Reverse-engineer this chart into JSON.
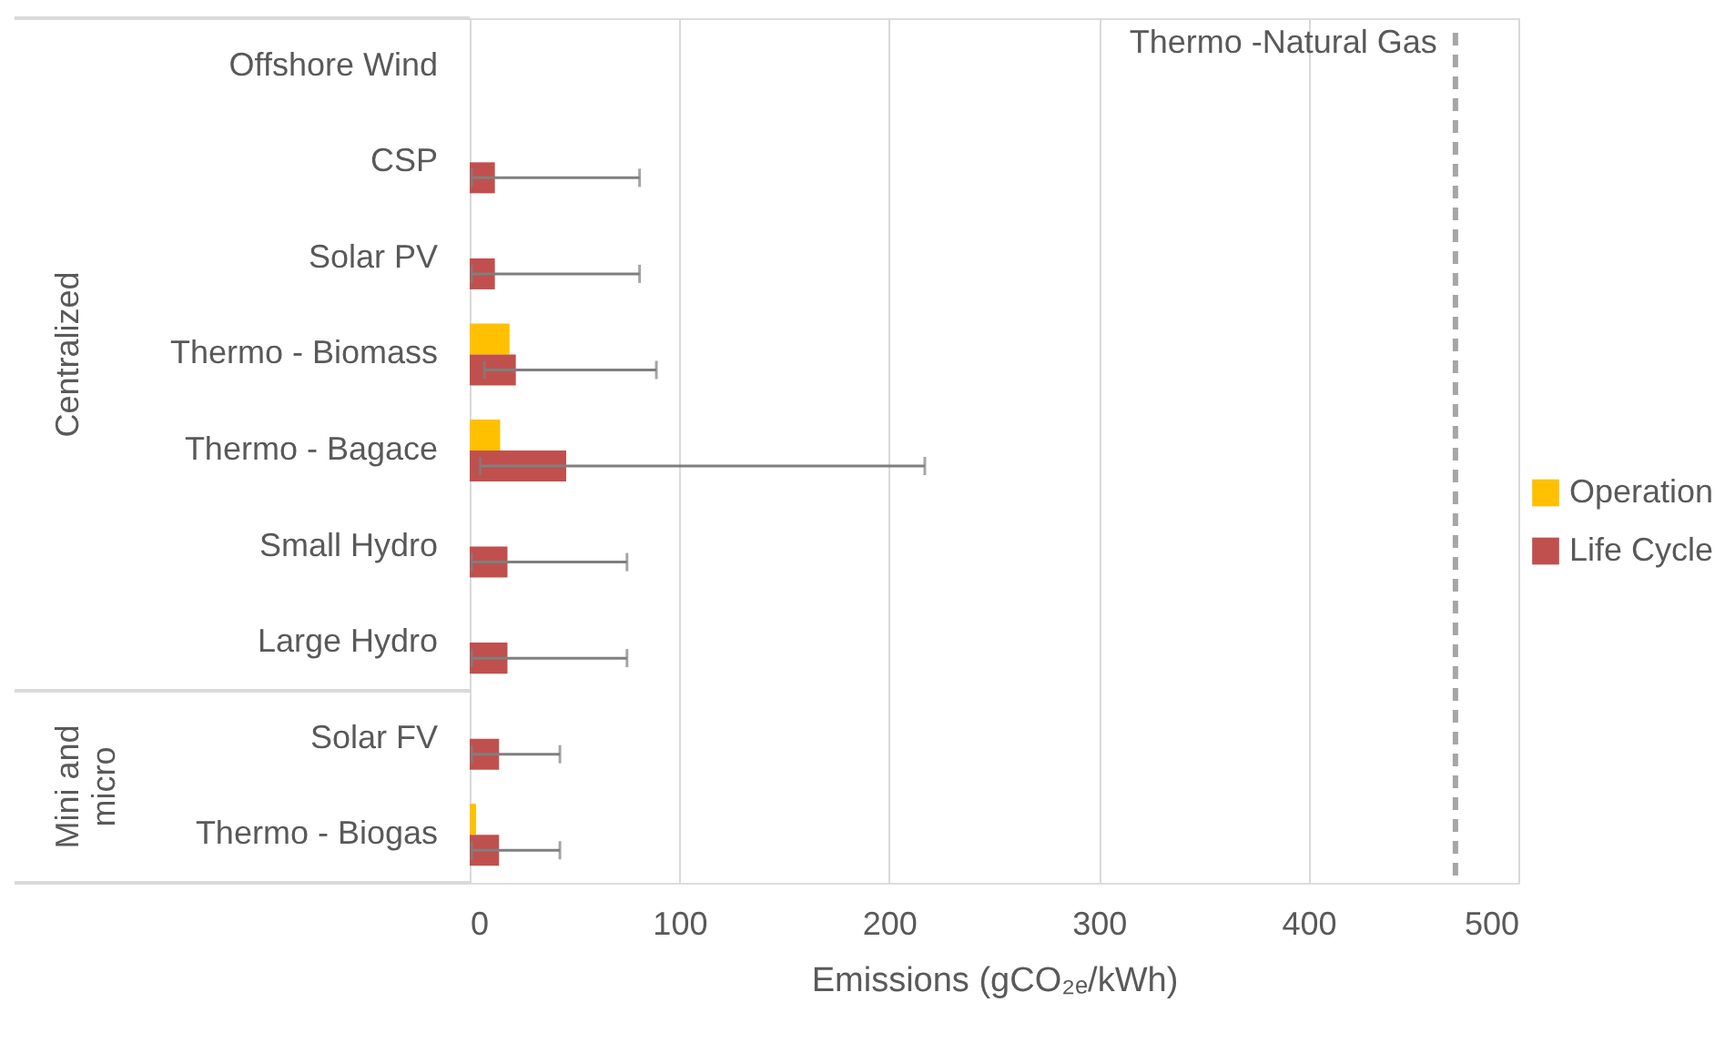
{
  "chart_data": {
    "type": "bar",
    "orientation": "horizontal",
    "xlabel": "Emissions (gCO₂ₑ/kWh)",
    "categories": [
      "Offshore Wind",
      "CSP",
      "Solar PV",
      "Thermo - Biomass",
      "Thermo - Bagace",
      "Small Hydro",
      "Large Hydro",
      "Solar FV",
      "Thermo - Biogas"
    ],
    "series": [
      {
        "name": "Operation",
        "color": "#ffc000",
        "values": [
          null,
          null,
          null,
          19,
          14.5,
          null,
          null,
          null,
          3
        ]
      },
      {
        "name": "Life Cycle",
        "color": "#c0504d",
        "values": [
          null,
          12,
          12,
          22,
          46,
          18,
          18,
          14,
          14
        ],
        "errors": [
          null,
          [
            1,
            81
          ],
          [
            1,
            81
          ],
          [
            7,
            89
          ],
          [
            5,
            217
          ],
          [
            1,
            75
          ],
          [
            1,
            75
          ],
          [
            1,
            43
          ],
          [
            1,
            43
          ]
        ]
      }
    ],
    "xlim": [
      0,
      500
    ],
    "xticks": [
      0,
      100,
      200,
      300,
      400,
      500
    ],
    "grid": "x",
    "legend": "right",
    "ref_lines": [
      {
        "axis": "x",
        "value": 470,
        "label": "Thermo -Natural Gas",
        "color": "#a6a6a6",
        "line_style": "dashed"
      }
    ],
    "annotations": [
      "Centralized",
      "Mini and micro"
    ]
  }
}
